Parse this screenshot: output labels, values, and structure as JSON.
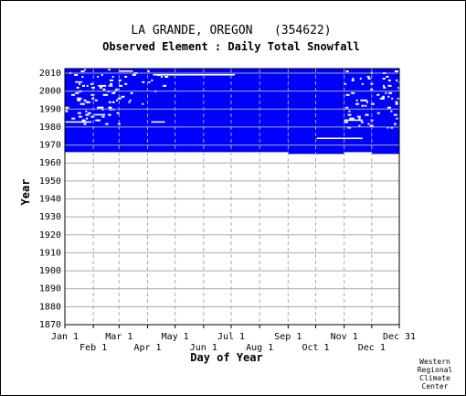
{
  "chart_data": {
    "type": "heatmap",
    "title": "LA GRANDE, OREGON   (354622)",
    "subtitle": "Observed Element : Daily Total Snowfall",
    "xlabel": "Day of Year",
    "ylabel": "Year",
    "x_ticks_upper": [
      "Jan 1",
      "Mar 1",
      "May 1",
      "Jul 1",
      "Sep 1",
      "Nov 1",
      "Dec 31"
    ],
    "x_ticks_lower": [
      "Feb 1",
      "Apr 1",
      "Jun 1",
      "Aug 1",
      "Oct 1",
      "Dec 1"
    ],
    "x_tick_days_upper": [
      1,
      60,
      121,
      182,
      244,
      305,
      365
    ],
    "x_tick_days_lower": [
      32,
      91,
      152,
      213,
      274,
      335
    ],
    "y_ticks": [
      "1870",
      "1880",
      "1890",
      "1900",
      "1910",
      "1920",
      "1930",
      "1940",
      "1950",
      "1960",
      "1970",
      "1980",
      "1990",
      "2000",
      "2010"
    ],
    "xlim": [
      1,
      365
    ],
    "ylim": [
      1870,
      2010
    ],
    "grid": true,
    "data_color": "#0000ff",
    "record_start_year": 1965,
    "record_end_year": 2010,
    "record_start_year_late_season": 1964,
    "late_season_start_day": 244,
    "late_season_gap_day_range": [
      305,
      335
    ],
    "missing_segments": [
      {
        "year": 2007,
        "start_day": 97,
        "end_day": 186
      },
      {
        "year": 1981,
        "start_day": 95,
        "end_day": 110
      },
      {
        "year": 1981,
        "start_day": 1,
        "end_day": 30
      },
      {
        "year": 1972,
        "start_day": 275,
        "end_day": 325
      },
      {
        "year": 1982,
        "start_day": 305,
        "end_day": 325
      },
      {
        "year": 2009,
        "start_day": 60,
        "end_day": 75
      },
      {
        "year": 2003,
        "start_day": 12,
        "end_day": 20
      },
      {
        "year": 1985,
        "start_day": 33,
        "end_day": 45
      }
    ]
  },
  "credit": [
    "Western",
    "Regional",
    "Climate",
    "Center"
  ]
}
